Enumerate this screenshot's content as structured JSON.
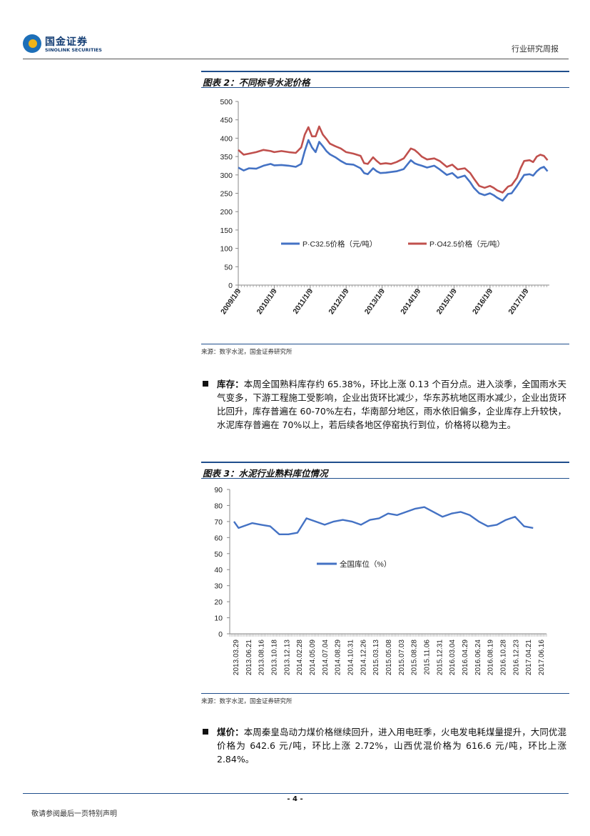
{
  "header": {
    "logo_cn": "国金证券",
    "logo_en": "SINOLINK SECURITIES",
    "report_type": "行业研究周报"
  },
  "figure2": {
    "title": "图表 2：不同标号水泥价格",
    "source": "来源：数字水泥，国金证券研究所"
  },
  "figure3": {
    "title": "图表 3：水泥行业熟料库位情况",
    "source": "来源：数字水泥，国金证券研究所"
  },
  "para_inventory": {
    "label": "库存：",
    "text": "本周全国熟料库存约 65.38%，环比上涨 0.13 个百分点。进入淡季，全国雨水天气变多，下游工程施工受影响，企业出货环比减少，华东苏杭地区雨水减少，企业出货环比回升，库存普遍在 60-70%左右，华南部分地区，雨水依旧偏多，企业库存上升较快，水泥库存普遍在 70%以上，若后续各地区停窑执行到位，价格将以稳为主。"
  },
  "para_coal": {
    "label": "煤价：",
    "text": "本周秦皇岛动力煤价格继续回升，进入用电旺季，火电发电耗煤量提升，大同优混价格为 642.6 元/吨，环比上涨 2.72%，山西优混价格为 616.6 元/吨，环比上涨 2.84%。"
  },
  "footer": {
    "page": "- 4 -",
    "note": "敬请参阅最后一页特别声明"
  },
  "chart_data": [
    {
      "type": "line",
      "ylim": [
        0,
        500
      ],
      "yticks": [
        0,
        50,
        100,
        150,
        200,
        250,
        300,
        350,
        400,
        450,
        500
      ],
      "ytick_labels": [
        "0",
        "50",
        "100",
        "150",
        "200",
        "250",
        "300",
        "350",
        "400",
        "450",
        "500"
      ],
      "xlim": [
        2009.0,
        2017.65
      ],
      "xticks": [
        2009.0,
        2010.0,
        2011.0,
        2012.0,
        2013.0,
        2014.0,
        2015.0,
        2016.0,
        2017.0
      ],
      "xtick_labels": [
        "2009/1/9",
        "2010/1/9",
        "2011/1/9",
        "2012/1/9",
        "2013/1/9",
        "2014/1/9",
        "2015/1/9",
        "2016/1/9",
        "2017/1/9"
      ],
      "legend_position": "inside-bottom",
      "series": [
        {
          "name": "P·C32.5价格（元/吨）",
          "color": "#4472c4",
          "x": [
            2009.0,
            2009.15,
            2009.3,
            2009.5,
            2009.7,
            2009.9,
            2010.0,
            2010.2,
            2010.4,
            2010.6,
            2010.75,
            2010.85,
            2010.95,
            2011.05,
            2011.15,
            2011.25,
            2011.35,
            2011.45,
            2011.55,
            2011.7,
            2011.85,
            2012.0,
            2012.2,
            2012.4,
            2012.5,
            2012.6,
            2012.75,
            2012.85,
            2012.95,
            2013.1,
            2013.25,
            2013.4,
            2013.6,
            2013.8,
            2013.9,
            2014.0,
            2014.1,
            2014.25,
            2014.45,
            2014.6,
            2014.8,
            2014.95,
            2015.1,
            2015.3,
            2015.45,
            2015.55,
            2015.7,
            2015.85,
            2016.0,
            2016.1,
            2016.2,
            2016.35,
            2016.5,
            2016.6,
            2016.75,
            2016.85,
            2016.95,
            2017.1,
            2017.2,
            2017.3,
            2017.4,
            2017.5,
            2017.6
          ],
          "y": [
            320,
            312,
            318,
            317,
            325,
            330,
            326,
            327,
            325,
            322,
            330,
            365,
            395,
            375,
            362,
            390,
            378,
            365,
            356,
            348,
            338,
            330,
            328,
            318,
            305,
            302,
            318,
            310,
            305,
            306,
            308,
            310,
            316,
            340,
            332,
            328,
            325,
            320,
            325,
            315,
            300,
            305,
            292,
            298,
            280,
            265,
            250,
            245,
            250,
            245,
            238,
            230,
            248,
            250,
            270,
            285,
            300,
            302,
            298,
            310,
            318,
            322,
            310
          ]
        },
        {
          "name": "P·O42.5价格（元/吨）",
          "color": "#c0504d",
          "x": [
            2009.0,
            2009.15,
            2009.3,
            2009.5,
            2009.7,
            2009.9,
            2010.0,
            2010.2,
            2010.4,
            2010.6,
            2010.75,
            2010.85,
            2010.95,
            2011.05,
            2011.15,
            2011.25,
            2011.35,
            2011.45,
            2011.55,
            2011.7,
            2011.85,
            2012.0,
            2012.2,
            2012.4,
            2012.5,
            2012.6,
            2012.75,
            2012.85,
            2012.95,
            2013.1,
            2013.25,
            2013.4,
            2013.6,
            2013.8,
            2013.9,
            2014.0,
            2014.1,
            2014.25,
            2014.45,
            2014.6,
            2014.8,
            2014.95,
            2015.1,
            2015.3,
            2015.45,
            2015.55,
            2015.7,
            2015.85,
            2016.0,
            2016.1,
            2016.2,
            2016.35,
            2016.5,
            2016.6,
            2016.75,
            2016.85,
            2016.95,
            2017.1,
            2017.2,
            2017.3,
            2017.4,
            2017.5,
            2017.6
          ],
          "y": [
            368,
            355,
            358,
            362,
            368,
            365,
            362,
            365,
            362,
            360,
            375,
            410,
            430,
            405,
            405,
            432,
            410,
            398,
            385,
            378,
            372,
            362,
            358,
            352,
            332,
            330,
            348,
            338,
            330,
            332,
            330,
            335,
            345,
            372,
            368,
            360,
            350,
            342,
            345,
            338,
            322,
            328,
            315,
            318,
            305,
            290,
            270,
            265,
            270,
            265,
            258,
            252,
            268,
            272,
            292,
            318,
            338,
            340,
            335,
            350,
            355,
            352,
            340
          ]
        }
      ]
    },
    {
      "type": "line",
      "ylim": [
        0,
        90
      ],
      "yticks": [
        0,
        10,
        20,
        30,
        40,
        50,
        60,
        70,
        80,
        90
      ],
      "ytick_labels": [
        "0",
        "10",
        "20",
        "30",
        "40",
        "50",
        "60",
        "70",
        "80",
        "90"
      ],
      "xlim": [
        0,
        34
      ],
      "xtick_labels": [
        "2013.03.29",
        "2013.06.21",
        "2013.08.16",
        "2013.10.18",
        "2013.12.13",
        "2014.02.28",
        "2014.05.09",
        "2014.07.04",
        "2014.08.29",
        "2014.10.31",
        "2014.12.26",
        "2015.03.13",
        "2015.05.08",
        "2015.07.03",
        "2015.08.28",
        "2015.11.06",
        "2015.12.31",
        "2016.03.04",
        "2016.04.29",
        "2016.06.24",
        "2016.08.19",
        "2016.10.28",
        "2016.12.23",
        "2017.04.21",
        "2017.06.16"
      ],
      "legend_position": "inside-middle",
      "series": [
        {
          "name": "全国库位（%）",
          "color": "#4472c4",
          "x": [
            0,
            0.5,
            1,
            2,
            3,
            4,
            5,
            6,
            7,
            8,
            9,
            10,
            11,
            12,
            13,
            14,
            15,
            16,
            17,
            18,
            19,
            20,
            21,
            22,
            23,
            24,
            25,
            26,
            27,
            28,
            29,
            30,
            31,
            32,
            33
          ],
          "y": [
            70,
            66,
            67,
            69,
            68,
            67,
            62,
            62,
            63,
            72,
            70,
            68,
            70,
            71,
            70,
            68,
            71,
            72,
            75,
            74,
            76,
            78,
            79,
            76,
            73,
            75,
            76,
            74,
            70,
            67,
            68,
            71,
            73,
            67,
            66
          ],
          "x_note": "row index along weekly axis"
        }
      ]
    }
  ]
}
